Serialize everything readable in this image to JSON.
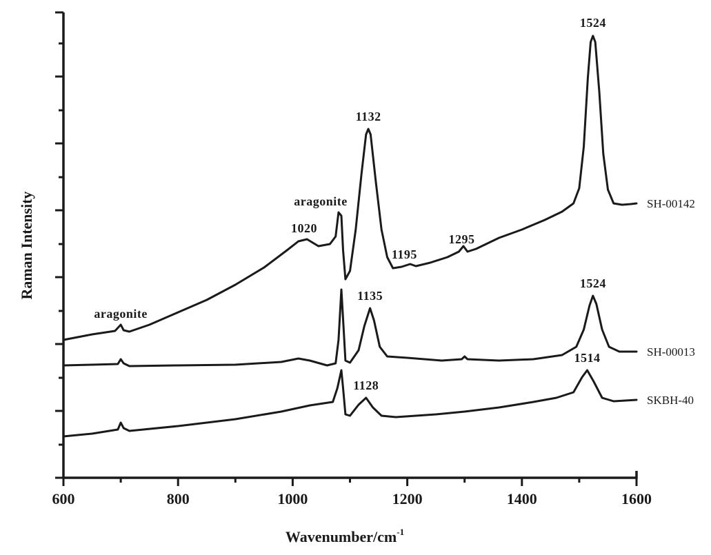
{
  "chart_data": {
    "type": "line",
    "title": "",
    "xlabel": "Wavenumber/cm",
    "xlabel_superscript": "-1",
    "ylabel": "Raman Intensity",
    "xlim": [
      600,
      1600
    ],
    "ylim": [
      0,
      700
    ],
    "x_ticks": [
      600,
      800,
      1000,
      1200,
      1400,
      1600
    ],
    "x_minor_ticks": [
      700,
      900,
      1100,
      1300,
      1500
    ],
    "y_tick_labels_shown": false,
    "y_major_ticks": [
      0,
      97,
      194,
      291,
      388,
      485,
      582,
      675
    ],
    "y_minor_ticks": [
      48,
      145,
      242,
      339,
      436,
      533,
      630
    ],
    "grid": false,
    "legend": "inline-right",
    "series": [
      {
        "name": "SH-00142",
        "points": [
          [
            600,
            200
          ],
          [
            650,
            208
          ],
          [
            690,
            213
          ],
          [
            700,
            222
          ],
          [
            705,
            214
          ],
          [
            715,
            212
          ],
          [
            750,
            222
          ],
          [
            800,
            240
          ],
          [
            850,
            258
          ],
          [
            900,
            280
          ],
          [
            950,
            305
          ],
          [
            990,
            330
          ],
          [
            1010,
            343
          ],
          [
            1025,
            346
          ],
          [
            1045,
            336
          ],
          [
            1065,
            339
          ],
          [
            1075,
            350
          ],
          [
            1080,
            385
          ],
          [
            1085,
            380
          ],
          [
            1088,
            330
          ],
          [
            1092,
            288
          ],
          [
            1100,
            300
          ],
          [
            1110,
            360
          ],
          [
            1120,
            440
          ],
          [
            1128,
            498
          ],
          [
            1132,
            506
          ],
          [
            1136,
            498
          ],
          [
            1145,
            430
          ],
          [
            1155,
            360
          ],
          [
            1165,
            320
          ],
          [
            1175,
            304
          ],
          [
            1190,
            306
          ],
          [
            1205,
            310
          ],
          [
            1215,
            307
          ],
          [
            1240,
            312
          ],
          [
            1270,
            320
          ],
          [
            1290,
            328
          ],
          [
            1298,
            336
          ],
          [
            1305,
            328
          ],
          [
            1320,
            332
          ],
          [
            1360,
            348
          ],
          [
            1400,
            360
          ],
          [
            1440,
            374
          ],
          [
            1470,
            386
          ],
          [
            1490,
            398
          ],
          [
            1500,
            420
          ],
          [
            1508,
            480
          ],
          [
            1515,
            580
          ],
          [
            1520,
            632
          ],
          [
            1524,
            641
          ],
          [
            1528,
            632
          ],
          [
            1535,
            560
          ],
          [
            1542,
            470
          ],
          [
            1550,
            418
          ],
          [
            1560,
            398
          ],
          [
            1575,
            396
          ],
          [
            1590,
            397
          ],
          [
            1600,
            398
          ]
        ]
      },
      {
        "name": "SH-00013",
        "points": [
          [
            600,
            163
          ],
          [
            650,
            164
          ],
          [
            695,
            165
          ],
          [
            700,
            172
          ],
          [
            705,
            166
          ],
          [
            715,
            162
          ],
          [
            800,
            163
          ],
          [
            900,
            164
          ],
          [
            980,
            168
          ],
          [
            1010,
            173
          ],
          [
            1030,
            170
          ],
          [
            1060,
            163
          ],
          [
            1075,
            166
          ],
          [
            1080,
            200
          ],
          [
            1085,
            273
          ],
          [
            1088,
            230
          ],
          [
            1092,
            170
          ],
          [
            1100,
            167
          ],
          [
            1115,
            185
          ],
          [
            1125,
            220
          ],
          [
            1135,
            246
          ],
          [
            1142,
            228
          ],
          [
            1152,
            190
          ],
          [
            1165,
            176
          ],
          [
            1200,
            174
          ],
          [
            1260,
            170
          ],
          [
            1295,
            172
          ],
          [
            1300,
            176
          ],
          [
            1305,
            172
          ],
          [
            1360,
            170
          ],
          [
            1420,
            172
          ],
          [
            1470,
            178
          ],
          [
            1495,
            190
          ],
          [
            1508,
            215
          ],
          [
            1518,
            250
          ],
          [
            1524,
            264
          ],
          [
            1530,
            252
          ],
          [
            1540,
            215
          ],
          [
            1552,
            190
          ],
          [
            1570,
            183
          ],
          [
            1600,
            183
          ]
        ]
      },
      {
        "name": "SKBH-40",
        "points": [
          [
            600,
            60
          ],
          [
            650,
            64
          ],
          [
            695,
            70
          ],
          [
            700,
            80
          ],
          [
            705,
            72
          ],
          [
            715,
            68
          ],
          [
            800,
            75
          ],
          [
            900,
            85
          ],
          [
            980,
            96
          ],
          [
            1030,
            105
          ],
          [
            1070,
            110
          ],
          [
            1078,
            130
          ],
          [
            1085,
            156
          ],
          [
            1088,
            130
          ],
          [
            1092,
            92
          ],
          [
            1100,
            90
          ],
          [
            1115,
            106
          ],
          [
            1128,
            116
          ],
          [
            1140,
            102
          ],
          [
            1155,
            90
          ],
          [
            1180,
            88
          ],
          [
            1250,
            92
          ],
          [
            1300,
            96
          ],
          [
            1360,
            102
          ],
          [
            1420,
            110
          ],
          [
            1460,
            116
          ],
          [
            1490,
            124
          ],
          [
            1505,
            146
          ],
          [
            1514,
            156
          ],
          [
            1525,
            140
          ],
          [
            1540,
            116
          ],
          [
            1560,
            111
          ],
          [
            1600,
            113
          ]
        ]
      }
    ],
    "annotations": [
      {
        "text": "aragonite",
        "x": 700,
        "y": 232,
        "series": "SH-00142",
        "note": "aragonite peak ~705 cm-1"
      },
      {
        "text": "1020",
        "x": 1020,
        "y": 356,
        "series": "SH-00142"
      },
      {
        "text": "aragonite",
        "x": 1085,
        "y": 395,
        "series": "SH-00142",
        "note": "aragonite peak ~1085 cm-1"
      },
      {
        "text": "1132",
        "x": 1132,
        "y": 518,
        "series": "SH-00142"
      },
      {
        "text": "1195",
        "x": 1195,
        "y": 318,
        "series": "SH-00142"
      },
      {
        "text": "1295",
        "x": 1295,
        "y": 340,
        "series": "SH-00142"
      },
      {
        "text": "1524",
        "x": 1524,
        "y": 654,
        "series": "SH-00142"
      },
      {
        "text": "1135",
        "x": 1135,
        "y": 258,
        "series": "SH-00013"
      },
      {
        "text": "1524",
        "x": 1524,
        "y": 276,
        "series": "SH-00013"
      },
      {
        "text": "1128",
        "x": 1128,
        "y": 128,
        "series": "SKBH-40"
      },
      {
        "text": "1514",
        "x": 1514,
        "y": 168,
        "series": "SKBH-40"
      }
    ]
  }
}
